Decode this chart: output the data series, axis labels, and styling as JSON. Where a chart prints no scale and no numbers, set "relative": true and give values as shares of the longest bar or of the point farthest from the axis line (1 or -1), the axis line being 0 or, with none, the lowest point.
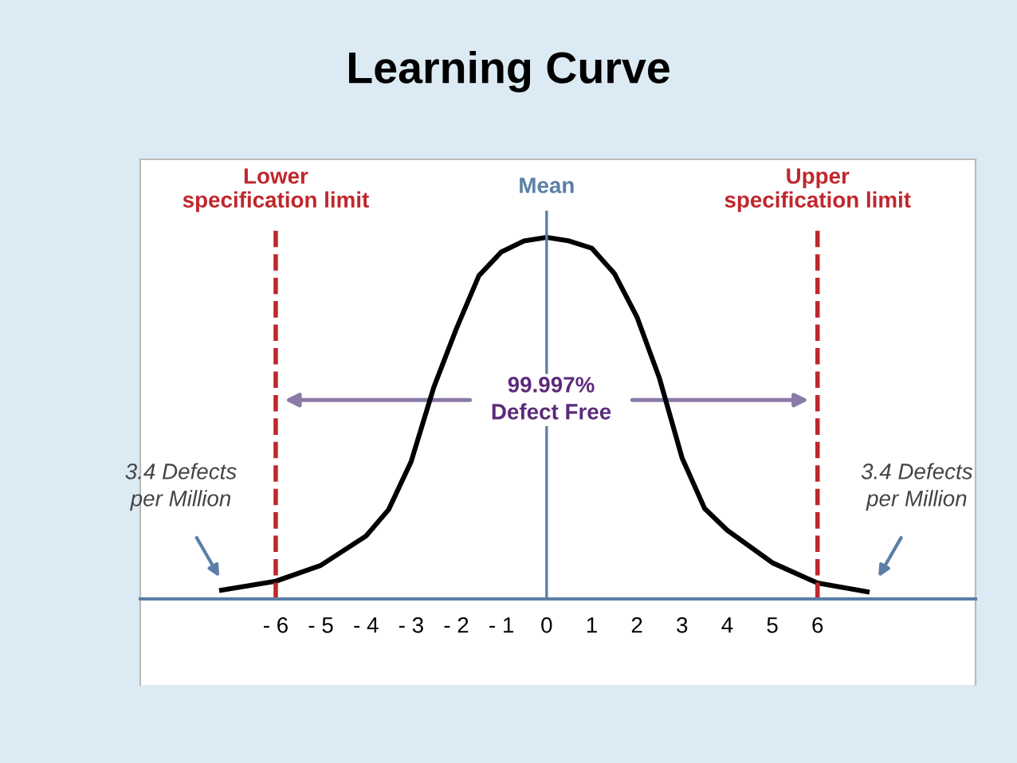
{
  "chart_data": {
    "type": "line",
    "title": "Learning Curve",
    "relative": true,
    "x": [
      -7.2,
      -6,
      -5,
      -4,
      -3.5,
      -3,
      -2.5,
      -2,
      -1.5,
      -1,
      -0.5,
      0,
      0.5,
      1,
      1.5,
      2,
      2.5,
      3,
      3.5,
      4,
      5,
      6,
      7.1
    ],
    "series": [
      {
        "color": "#000000",
        "values": [
          0.024,
          0.049,
          0.093,
          0.174,
          0.247,
          0.38,
          0.585,
          0.747,
          0.894,
          0.96,
          0.99,
          1,
          0.99,
          0.97,
          0.9,
          0.78,
          0.61,
          0.39,
          0.25,
          0.19,
          0.1,
          0.044,
          0.02
        ]
      }
    ],
    "xlim": [
      -9,
      9.5
    ],
    "xticks": [
      {
        "value": -6,
        "label": "- 6"
      },
      {
        "value": -5,
        "label": "- 5"
      },
      {
        "value": -4,
        "label": "- 4"
      },
      {
        "value": -3,
        "label": "- 3"
      },
      {
        "value": -2,
        "label": "- 2"
      },
      {
        "value": -1,
        "label": "- 1"
      },
      0,
      1,
      2,
      3,
      4,
      5,
      6
    ],
    "ref_lines": [
      {
        "axis": "x",
        "value": -6,
        "label": "Lower\nspecification limit",
        "color": "#c0272d",
        "line_style": "dashed"
      },
      {
        "axis": "x",
        "value": 0,
        "label": "Mean",
        "color": "#5b7fa6",
        "line_style": "solid"
      },
      {
        "axis": "x",
        "value": 6,
        "label": "Upper\nspecification limit",
        "color": "#c0272d",
        "line_style": "dashed"
      }
    ],
    "annotations": [
      "99.997%\nDefect Free",
      "3.4 Defects\nper Million",
      "3.4 Defects\nper Million"
    ],
    "grid": false,
    "legend": false,
    "marker": "none",
    "line_style": "solid"
  }
}
